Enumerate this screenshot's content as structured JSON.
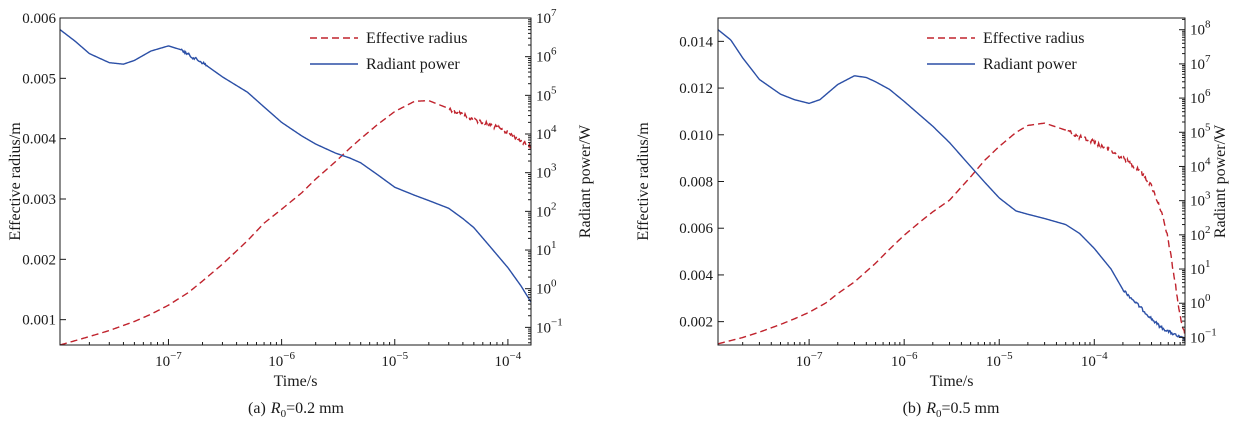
{
  "chart_data": [
    {
      "type": "line",
      "panel_label": "(a)",
      "caption_var": "R",
      "caption_sub": "0",
      "caption_rest": "=0.2 mm",
      "xlabel": "Time/s",
      "ylabel_left": "Effective radius/m",
      "ylabel_right": "Radiant power/W",
      "x_scale": "log",
      "xlim": [
        1.1e-08,
        0.00016
      ],
      "x_ticks": [
        1e-07,
        1e-06,
        1e-05,
        0.0001
      ],
      "x_tick_labels": [
        {
          "base": "10",
          "exp": "−7"
        },
        {
          "base": "10",
          "exp": "−6"
        },
        {
          "base": "10",
          "exp": "−5"
        },
        {
          "base": "10",
          "exp": "−4"
        }
      ],
      "left_axis": {
        "scale": "linear",
        "ylim": [
          0.00058,
          0.006
        ],
        "ticks": [
          0.001,
          0.002,
          0.003,
          0.004,
          0.005,
          0.006
        ],
        "tick_labels": [
          "0.001",
          "0.002",
          "0.003",
          "0.004",
          "0.005",
          "0.006"
        ]
      },
      "right_axis": {
        "scale": "log",
        "ylim": [
          0.035,
          10000000.0
        ],
        "ticks": [
          0.1,
          1,
          10,
          100,
          1000,
          10000,
          100000,
          1000000,
          10000000
        ],
        "tick_labels": [
          {
            "base": "10",
            "exp": "−1"
          },
          {
            "base": "10",
            "exp": "0"
          },
          {
            "base": "10",
            "exp": "1"
          },
          {
            "base": "10",
            "exp": "2"
          },
          {
            "base": "10",
            "exp": "3"
          },
          {
            "base": "10",
            "exp": "4"
          },
          {
            "base": "10",
            "exp": "5"
          },
          {
            "base": "10",
            "exp": "6"
          },
          {
            "base": "10",
            "exp": "7"
          }
        ]
      },
      "legend_position": "top-right",
      "series": [
        {
          "name": "Effective radius",
          "axis": "left",
          "color": "#c0232d",
          "dash": "dashed",
          "x": [
            1.1e-08,
            2e-08,
            3e-08,
            5e-08,
            7e-08,
            1e-07,
            1.5e-07,
            2e-07,
            3e-07,
            5e-07,
            7e-07,
            1e-06,
            1.5e-06,
            2e-06,
            3e-06,
            4e-06,
            5e-06,
            7e-06,
            1e-05,
            1.5e-05,
            2e-05,
            3e-05,
            5e-05,
            7e-05,
            0.0001,
            0.00013,
            0.00016
          ],
          "y": [
            0.00058,
            0.00072,
            0.00082,
            0.00097,
            0.00109,
            0.00124,
            0.00145,
            0.00164,
            0.00192,
            0.00231,
            0.0026,
            0.00283,
            0.0031,
            0.00333,
            0.00362,
            0.00384,
            0.004,
            0.00423,
            0.00445,
            0.00462,
            0.00463,
            0.0045,
            0.00432,
            0.00423,
            0.0041,
            0.00397,
            0.00386
          ],
          "noise_from_x": 3e-05
        },
        {
          "name": "Radiant power",
          "axis": "right",
          "color": "#2b4fa6",
          "dash": "solid",
          "x": [
            1.1e-08,
            1.5e-08,
            2e-08,
            3e-08,
            4e-08,
            5e-08,
            7e-08,
            1e-07,
            1.3e-07,
            1.6e-07,
            2e-07,
            3e-07,
            5e-07,
            7e-07,
            1e-06,
            1.5e-06,
            2e-06,
            3e-06,
            4e-06,
            5e-06,
            7e-06,
            1e-05,
            1.5e-05,
            2e-05,
            3e-05,
            4e-05,
            5e-05,
            7e-05,
            0.0001,
            0.00013,
            0.00016
          ],
          "y": [
            5000000,
            2500000,
            1200000,
            700000,
            640000,
            800000,
            1400000,
            1900000,
            1500000,
            1000000,
            700000,
            300000,
            120000,
            50000,
            20000,
            9000,
            5500,
            3200,
            2400,
            1800,
            900,
            420,
            260,
            190,
            120,
            65,
            38,
            12,
            3.5,
            1.2,
            0.45
          ],
          "noise_range": [
            1.3e-07,
            2.2e-07
          ]
        }
      ]
    },
    {
      "type": "line",
      "panel_label": "(b)",
      "caption_var": "R",
      "caption_sub": "0",
      "caption_rest": "=0.5 mm",
      "xlabel": "Time/s",
      "ylabel_left": "Effective radius/m",
      "ylabel_right": "Radiant power/W",
      "x_scale": "log",
      "xlim": [
        1.1e-08,
        0.0009
      ],
      "x_ticks": [
        1e-07,
        1e-06,
        1e-05,
        0.0001
      ],
      "x_tick_labels": [
        {
          "base": "10",
          "exp": "−7"
        },
        {
          "base": "10",
          "exp": "−6"
        },
        {
          "base": "10",
          "exp": "−5"
        },
        {
          "base": "10",
          "exp": "−4"
        }
      ],
      "left_axis": {
        "scale": "linear",
        "ylim": [
          0.001,
          0.015
        ],
        "ticks": [
          0.002,
          0.004,
          0.006,
          0.008,
          0.01,
          0.012,
          0.014
        ],
        "tick_labels": [
          "0.002",
          "0.004",
          "0.006",
          "0.008",
          "0.010",
          "0.012",
          "0.014"
        ]
      },
      "right_axis": {
        "scale": "log",
        "ylim": [
          0.06,
          220000000.0
        ],
        "ticks": [
          0.1,
          1,
          10,
          100,
          1000,
          10000,
          100000,
          1000000,
          10000000,
          100000000
        ],
        "tick_labels": [
          {
            "base": "10",
            "exp": "−1"
          },
          {
            "base": "10",
            "exp": "0"
          },
          {
            "base": "10",
            "exp": "1"
          },
          {
            "base": "10",
            "exp": "2"
          },
          {
            "base": "10",
            "exp": "3"
          },
          {
            "base": "10",
            "exp": "4"
          },
          {
            "base": "10",
            "exp": "5"
          },
          {
            "base": "10",
            "exp": "6"
          },
          {
            "base": "10",
            "exp": "7"
          },
          {
            "base": "10",
            "exp": "8"
          }
        ]
      },
      "legend_position": "top-right",
      "series": [
        {
          "name": "Effective radius",
          "axis": "left",
          "color": "#c0232d",
          "dash": "dashed",
          "x": [
            1.1e-08,
            2e-08,
            3e-08,
            5e-08,
            7e-08,
            1e-07,
            1.5e-07,
            2e-07,
            3e-07,
            5e-07,
            7e-07,
            1e-06,
            1.5e-06,
            2e-06,
            3e-06,
            5e-06,
            7e-06,
            1e-05,
            1.5e-05,
            2e-05,
            3e-05,
            5e-05,
            7e-05,
            0.0001,
            0.00015,
            0.0002,
            0.0003,
            0.0004,
            0.0005,
            0.0006,
            0.0007,
            0.0008,
            0.0009
          ],
          "y": [
            0.00105,
            0.00132,
            0.00155,
            0.00188,
            0.00212,
            0.0024,
            0.0028,
            0.0032,
            0.0037,
            0.0045,
            0.0051,
            0.0057,
            0.0063,
            0.0067,
            0.0072,
            0.0082,
            0.0089,
            0.0095,
            0.0101,
            0.0104,
            0.0105,
            0.0102,
            0.0099,
            0.0097,
            0.0093,
            0.009,
            0.0085,
            0.0078,
            0.0068,
            0.0055,
            0.0038,
            0.0022,
            0.0014
          ],
          "noise_from_x": 5e-05
        },
        {
          "name": "Radiant power",
          "axis": "right",
          "color": "#2b4fa6",
          "dash": "solid",
          "x": [
            1.1e-08,
            1.5e-08,
            2e-08,
            3e-08,
            5e-08,
            7e-08,
            1e-07,
            1.3e-07,
            2e-07,
            3e-07,
            4e-07,
            5e-07,
            7e-07,
            1e-06,
            1.5e-06,
            2e-06,
            3e-06,
            5e-06,
            7e-06,
            1e-05,
            1.5e-05,
            2e-05,
            3e-05,
            5e-05,
            7e-05,
            0.0001,
            0.00015,
            0.0002,
            0.0003,
            0.0004,
            0.0005,
            0.0006,
            0.0007,
            0.0008,
            0.0009
          ],
          "y": [
            100000000,
            50000000,
            15000000,
            3500000,
            1300000,
            900000,
            700000,
            900000,
            2500000,
            4500000,
            4000000,
            3000000,
            1800000,
            800000,
            300000,
            150000,
            50000,
            10000,
            3500,
            1200,
            500,
            400,
            300,
            200,
            110,
            40,
            10,
            2.5,
            0.8,
            0.35,
            0.2,
            0.15,
            0.12,
            0.1,
            0.09
          ],
          "noise_from_x": 0.0002
        }
      ]
    }
  ]
}
